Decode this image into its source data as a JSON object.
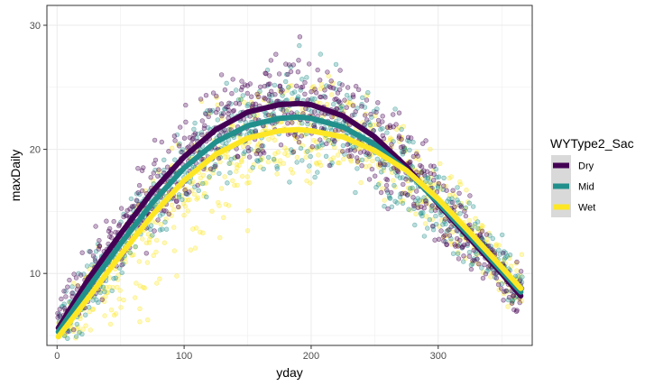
{
  "chart_data": {
    "type": "scatter",
    "xlabel": "yday",
    "ylabel": "maxDaily",
    "xlim": [
      -8,
      374
    ],
    "ylim": [
      4.2,
      31.6
    ],
    "x_ticks": [
      0,
      100,
      200,
      300
    ],
    "y_ticks": [
      10,
      20,
      30
    ],
    "grid": true,
    "point_opacity": 0.3,
    "legend": {
      "title": "WYType2_Sac",
      "placement": "right",
      "entries": [
        "Dry",
        "Mid",
        "Wet"
      ]
    },
    "series": [
      {
        "name": "Dry",
        "color": "#440154",
        "smooth_x": [
          1,
          25,
          50,
          75,
          100,
          125,
          150,
          175,
          190,
          200,
          225,
          250,
          275,
          300,
          325,
          350,
          365
        ],
        "smooth_y": [
          5.6,
          9.6,
          13.2,
          16.6,
          19.4,
          21.6,
          23.0,
          23.6,
          23.7,
          23.6,
          22.7,
          21.0,
          18.6,
          15.6,
          12.8,
          10.0,
          8.2
        ]
      },
      {
        "name": "Mid",
        "color": "#21908C",
        "smooth_x": [
          1,
          25,
          50,
          75,
          100,
          125,
          150,
          175,
          190,
          200,
          225,
          250,
          275,
          300,
          325,
          350,
          365
        ],
        "smooth_y": [
          5.3,
          8.9,
          12.4,
          15.7,
          18.5,
          20.6,
          21.9,
          22.5,
          22.6,
          22.5,
          21.8,
          20.4,
          18.3,
          15.7,
          13.0,
          10.2,
          8.5
        ]
      },
      {
        "name": "Wet",
        "color": "#FDE725",
        "smooth_x": [
          1,
          25,
          50,
          75,
          100,
          125,
          150,
          175,
          190,
          200,
          225,
          250,
          275,
          300,
          325,
          350,
          365
        ],
        "smooth_y": [
          4.9,
          8.1,
          11.5,
          14.7,
          17.5,
          19.6,
          20.9,
          21.5,
          21.6,
          21.5,
          21.0,
          19.9,
          18.3,
          16.0,
          13.3,
          10.5,
          8.8
        ]
      }
    ]
  },
  "colors": {
    "panel_border": "#333333",
    "grid": "#ebebeb",
    "legend_key_bg": "#d9d9d9"
  }
}
